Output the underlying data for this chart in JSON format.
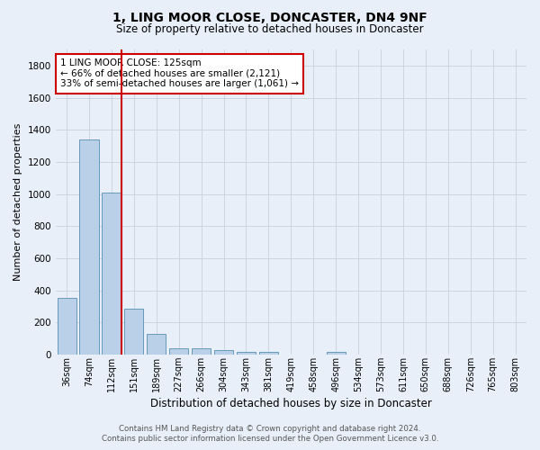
{
  "title": "1, LING MOOR CLOSE, DONCASTER, DN4 9NF",
  "subtitle": "Size of property relative to detached houses in Doncaster",
  "xlabel": "Distribution of detached houses by size in Doncaster",
  "ylabel": "Number of detached properties",
  "categories": [
    "36sqm",
    "74sqm",
    "112sqm",
    "151sqm",
    "189sqm",
    "227sqm",
    "266sqm",
    "304sqm",
    "343sqm",
    "381sqm",
    "419sqm",
    "458sqm",
    "496sqm",
    "534sqm",
    "573sqm",
    "611sqm",
    "650sqm",
    "688sqm",
    "726sqm",
    "765sqm",
    "803sqm"
  ],
  "values": [
    355,
    1340,
    1010,
    285,
    130,
    42,
    42,
    30,
    20,
    18,
    0,
    0,
    20,
    0,
    0,
    0,
    0,
    0,
    0,
    0,
    0
  ],
  "bar_color": "#bad0e8",
  "bar_edge_color": "#6699bb",
  "background_color": "#e8eff8",
  "grid_color": "#c8d0dc",
  "redline_index": 2,
  "redline_color": "#cc0000",
  "annotation_text": "1 LING MOOR CLOSE: 125sqm\n← 66% of detached houses are smaller (2,121)\n33% of semi-detached houses are larger (1,061) →",
  "annotation_box_facecolor": "#ffffff",
  "annotation_box_edge": "#cc0000",
  "footer_line1": "Contains HM Land Registry data © Crown copyright and database right 2024.",
  "footer_line2": "Contains public sector information licensed under the Open Government Licence v3.0.",
  "ylim": [
    0,
    1900
  ],
  "yticks": [
    0,
    200,
    400,
    600,
    800,
    1000,
    1200,
    1400,
    1600,
    1800
  ],
  "title_fontsize": 10,
  "subtitle_fontsize": 8.5,
  "ylabel_fontsize": 8,
  "xlabel_fontsize": 8.5
}
